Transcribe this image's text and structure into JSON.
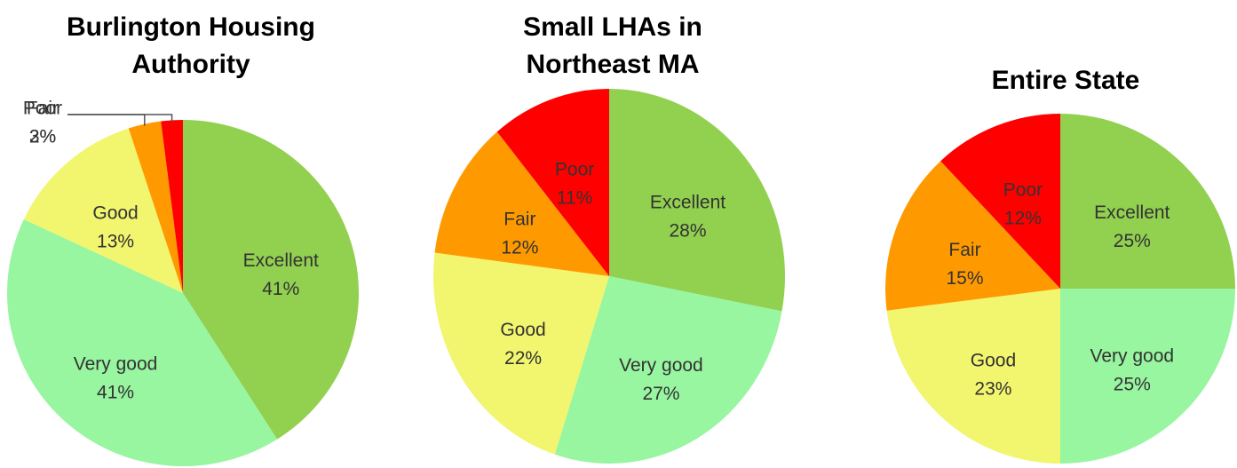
{
  "chart_data": [
    {
      "type": "pie",
      "title": "Burlington Housing Authority",
      "categories": [
        "Excellent",
        "Very good",
        "Good",
        "Fair",
        "Poor"
      ],
      "values": [
        41,
        41,
        13,
        3,
        2
      ],
      "value_labels": [
        "41%",
        "41%",
        "13%",
        "3%",
        "2%"
      ],
      "colors": [
        "#92d050",
        "#98f5a0",
        "#f2f56e",
        "#ff9900",
        "#ff0000"
      ]
    },
    {
      "type": "pie",
      "title": "Small LHAs in Northeast MA",
      "categories": [
        "Excellent",
        "Very good",
        "Good",
        "Fair",
        "Poor"
      ],
      "values": [
        28,
        27,
        22,
        12,
        11
      ],
      "value_labels": [
        "28%",
        "27%",
        "22%",
        "12%",
        "11%"
      ],
      "colors": [
        "#92d050",
        "#98f5a0",
        "#f2f56e",
        "#ff9900",
        "#ff0000"
      ]
    },
    {
      "type": "pie",
      "title": "Entire State",
      "categories": [
        "Excellent",
        "Very good",
        "Good",
        "Fair",
        "Poor"
      ],
      "values": [
        25,
        25,
        23,
        15,
        12
      ],
      "value_labels": [
        "25%",
        "25%",
        "23%",
        "15%",
        "12%"
      ],
      "colors": [
        "#92d050",
        "#98f5a0",
        "#f2f56e",
        "#ff9900",
        "#ff0000"
      ]
    }
  ]
}
